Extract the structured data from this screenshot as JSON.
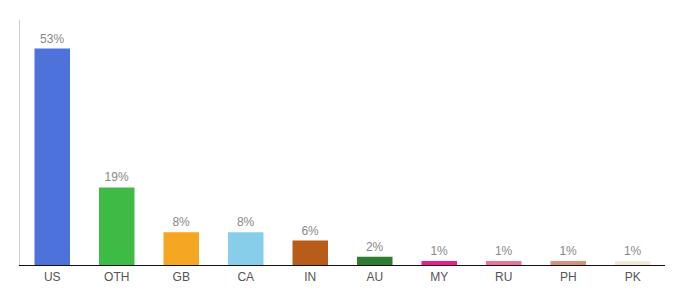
{
  "chart_data": {
    "type": "bar",
    "categories": [
      "US",
      "OTH",
      "GB",
      "CA",
      "IN",
      "AU",
      "MY",
      "RU",
      "PH",
      "PK"
    ],
    "values": [
      53,
      19,
      8,
      8,
      6,
      2,
      1,
      1,
      1,
      1
    ],
    "value_labels": [
      "53%",
      "19%",
      "8%",
      "8%",
      "6%",
      "2%",
      "1%",
      "1%",
      "1%",
      "1%"
    ],
    "colors": [
      "#4d72d9",
      "#3dbb45",
      "#f5a623",
      "#87ceeb",
      "#b85c1a",
      "#2e7d32",
      "#e91e8c",
      "#e8759a",
      "#d9917a",
      "#f0ead6"
    ],
    "ylim": [
      0,
      60
    ],
    "data_labels": true,
    "tick_labels": "x",
    "grid": false
  }
}
